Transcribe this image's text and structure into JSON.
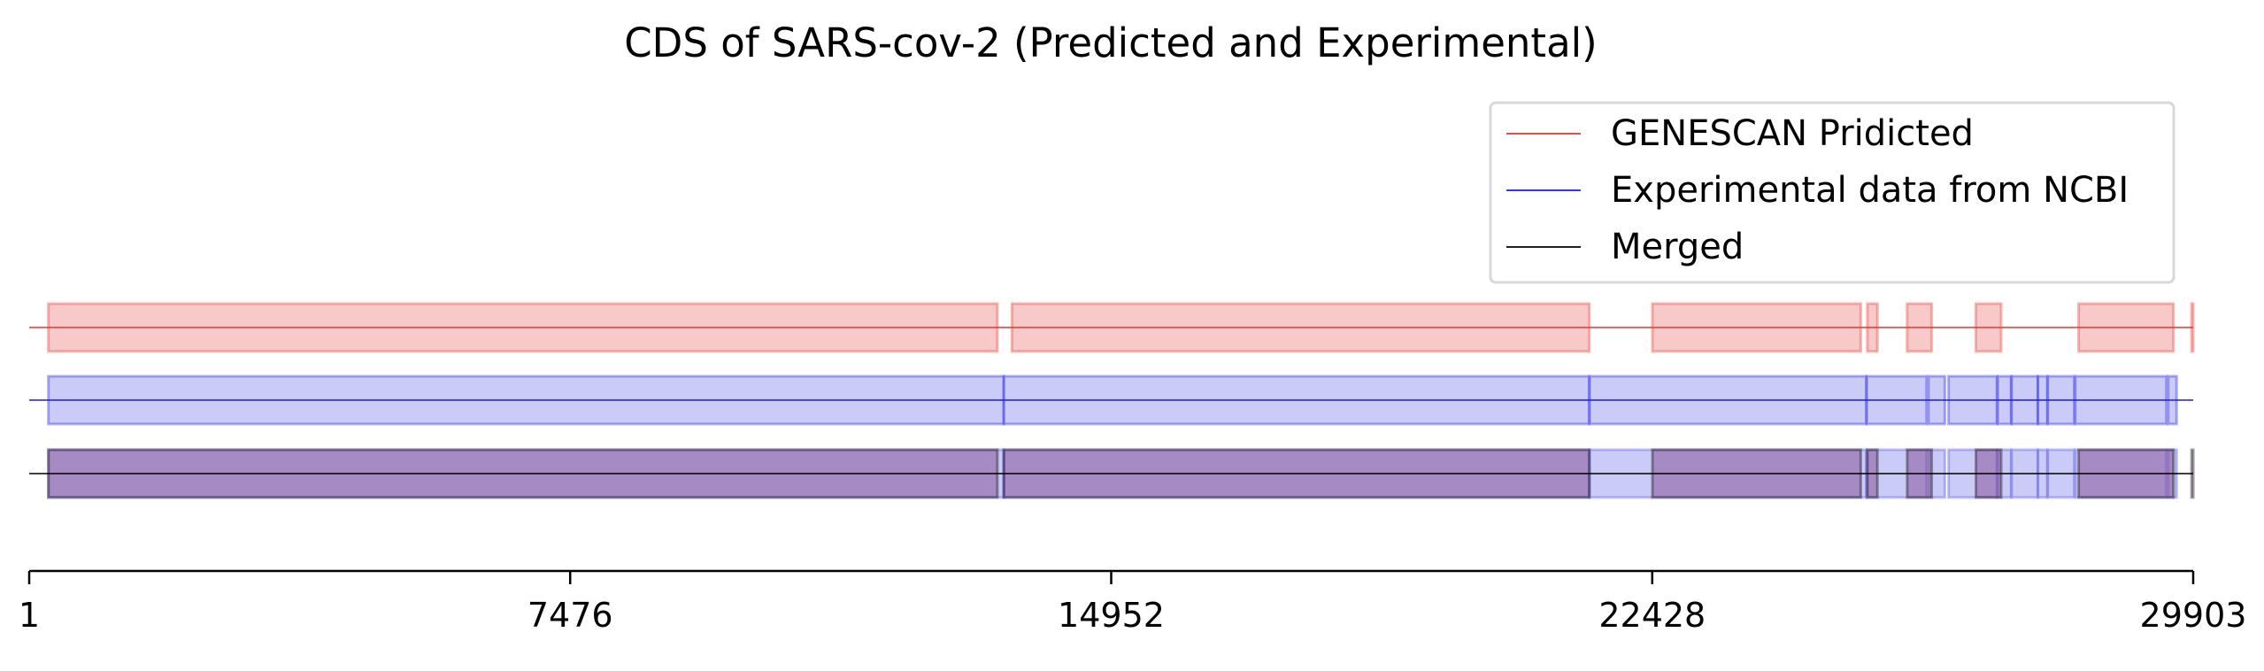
{
  "chart_data": {
    "type": "gene-track",
    "title": "CDS of SARS-cov-2 (Predicted and Experimental)",
    "xlim": [
      1,
      29903
    ],
    "ticks": [
      1,
      7476,
      14952,
      22428,
      29903
    ],
    "tick_labels": [
      "1",
      "7476",
      "14952",
      "22428",
      "29903"
    ],
    "legend_position": "upper right",
    "tracks": [
      {
        "name": "GENESCAN Pridicted",
        "color": "#e8362a",
        "fill": "rgba(236,120,120,0.40)",
        "segments": [
          [
            266,
            13380
          ],
          [
            13580,
            21560
          ],
          [
            22430,
            25310
          ],
          [
            25400,
            25540
          ],
          [
            25950,
            26290
          ],
          [
            26900,
            27250
          ],
          [
            28320,
            29630
          ],
          [
            29880,
            29903
          ]
        ]
      },
      {
        "name": "Experimental data from NCBI",
        "color": "#1a1ae8",
        "fill": "rgba(140,140,240,0.45)",
        "segments": [
          [
            266,
            13468
          ],
          [
            13468,
            21555
          ],
          [
            21563,
            25384
          ],
          [
            25393,
            26220
          ],
          [
            26245,
            26472
          ],
          [
            26523,
            27191
          ],
          [
            27202,
            27387
          ],
          [
            27394,
            27759
          ],
          [
            27756,
            27887
          ],
          [
            27894,
            28259
          ],
          [
            28274,
            29533
          ],
          [
            29558,
            29674
          ]
        ]
      },
      {
        "name": "Merged",
        "color": "#000000",
        "fill": "rgba(120,60,130,0.45)",
        "segments": [
          [
            266,
            13380
          ],
          [
            13468,
            21560
          ],
          [
            22430,
            25310
          ],
          [
            25400,
            25540
          ],
          [
            25950,
            26290
          ],
          [
            26900,
            27250
          ],
          [
            28320,
            29630
          ],
          [
            29880,
            29903
          ]
        ],
        "underlay": [
          [
            266,
            13468
          ],
          [
            13468,
            21555
          ],
          [
            21563,
            25384
          ],
          [
            25393,
            26220
          ],
          [
            26245,
            26472
          ],
          [
            26523,
            27191
          ],
          [
            27202,
            27387
          ],
          [
            27394,
            27759
          ],
          [
            27756,
            27887
          ],
          [
            27894,
            28259
          ],
          [
            28274,
            29533
          ],
          [
            29558,
            29674
          ]
        ],
        "underlay_fill": "rgba(140,140,240,0.45)"
      }
    ]
  }
}
